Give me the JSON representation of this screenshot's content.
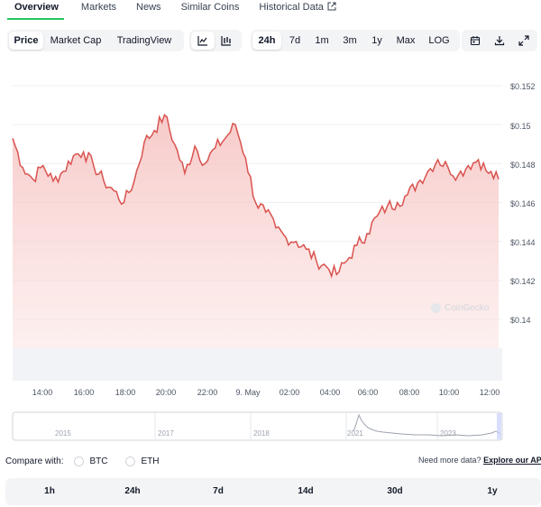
{
  "tabs": [
    {
      "label": "Overview",
      "active": true
    },
    {
      "label": "Markets"
    },
    {
      "label": "News"
    },
    {
      "label": "Similar Coins"
    },
    {
      "label": "Historical Data",
      "external": true
    }
  ],
  "toolbar": {
    "chart_types": [
      "Price",
      "Market Cap",
      "TradingView"
    ],
    "active_chart_type": "Price",
    "chart_styles": [
      "line-chart-icon",
      "candlestick-chart-icon"
    ],
    "ranges": [
      "24h",
      "7d",
      "1m",
      "3m",
      "1y",
      "Max",
      "LOG"
    ],
    "active_range": "24h",
    "actions": [
      "calendar-icon",
      "download-icon",
      "expand-icon"
    ]
  },
  "chart": {
    "y_ticks": [
      "$0.152",
      "$0.15",
      "$0.148",
      "$0.146",
      "$0.144",
      "$0.142",
      "$0.14"
    ],
    "x_ticks": [
      "14:00",
      "16:00",
      "18:00",
      "20:00",
      "22:00",
      "9. May",
      "02:00",
      "04:00",
      "06:00",
      "08:00",
      "10:00",
      "12:00"
    ],
    "watermark": "CoinGecko",
    "line_color": "#d9534f",
    "fill_color": "#f8d0cf"
  },
  "chart_data": {
    "type": "area",
    "ylim": [
      0.14,
      0.152
    ],
    "xlabel": "",
    "ylabel": "",
    "x": [
      "13:00",
      "13:30",
      "14:00",
      "14:30",
      "15:00",
      "15:30",
      "16:00",
      "16:30",
      "17:00",
      "17:30",
      "18:00",
      "18:30",
      "19:00",
      "19:30",
      "20:00",
      "20:30",
      "21:00",
      "21:30",
      "22:00",
      "22:30",
      "23:00",
      "23:30",
      "00:00",
      "00:30",
      "01:00",
      "01:30",
      "02:00",
      "02:30",
      "03:00",
      "03:30",
      "04:00",
      "04:30",
      "05:00",
      "05:30",
      "06:00",
      "06:30",
      "07:00",
      "07:30",
      "08:00",
      "08:30",
      "09:00",
      "09:30",
      "10:00",
      "10:30",
      "11:00",
      "11:30",
      "12:00",
      "12:30",
      "13:00"
    ],
    "series": [
      {
        "values": [
          0.1493,
          0.1478,
          0.1472,
          0.1479,
          0.1471,
          0.1476,
          0.1484,
          0.1486,
          0.1479,
          0.1471,
          0.1466,
          0.146,
          0.1471,
          0.1491,
          0.1497,
          0.1505,
          0.149,
          0.1475,
          0.1489,
          0.148,
          0.1488,
          0.1493,
          0.15,
          0.1483,
          0.146,
          0.1455,
          0.1447,
          0.1442,
          0.144,
          0.1436,
          0.143,
          0.1427,
          0.1423,
          0.143,
          0.1438,
          0.1444,
          0.1453,
          0.1458,
          0.146,
          0.1464,
          0.147,
          0.1476,
          0.1482,
          0.1478,
          0.1474,
          0.1479,
          0.1482,
          0.1475,
          0.1472
        ]
      }
    ],
    "mini_chart": {
      "x_ticks": [
        "2015",
        "2017",
        "2018",
        "2021",
        "2023"
      ]
    }
  },
  "compare": {
    "label": "Compare with:",
    "options": [
      "BTC",
      "ETH"
    ],
    "need_data_text": "Need more data?",
    "explore_link": "Explore our API"
  },
  "periods": [
    "1h",
    "24h",
    "7d",
    "14d",
    "30d",
    "1y"
  ]
}
